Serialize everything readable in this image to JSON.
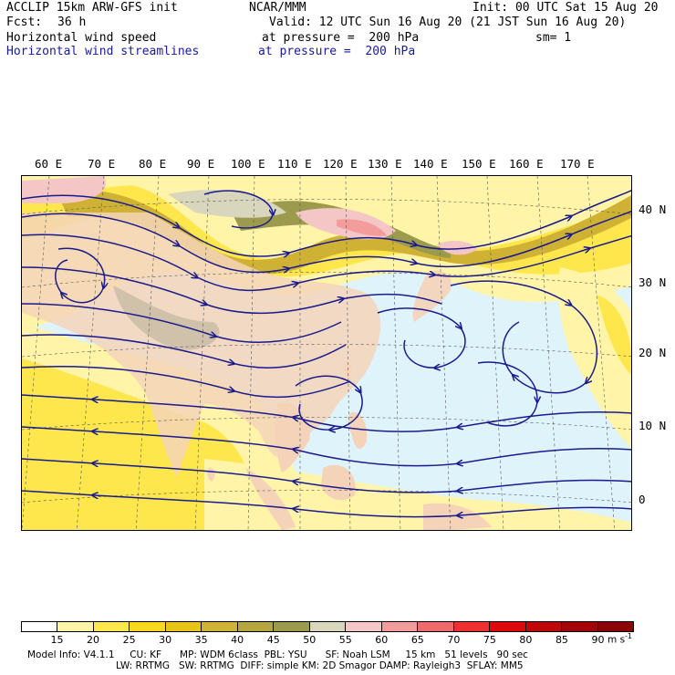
{
  "header": {
    "model": "ACCLIP 15km ARW-GFS init",
    "fcst_label": "Fcst:",
    "fcst_value": "36 h",
    "org": "NCAR/MMM",
    "init": "Init: 00 UTC Sat 15 Aug 20",
    "valid": "Valid: 12 UTC Sun 16 Aug 20 (21 JST Sun 16 Aug 20)",
    "field1": "Horizontal wind speed",
    "field1_level": "at pressure =  200 hPa",
    "sm": "sm= 1",
    "field2": "Horizontal wind streamlines",
    "field2_level": "at pressure =  200 hPa"
  },
  "map": {
    "lon_labels": [
      "60 E",
      "70 E",
      "80 E",
      "90 E",
      "100 E",
      "110 E",
      "120 E",
      "130 E",
      "140 E",
      "150 E",
      "160 E",
      "170 E"
    ],
    "lat_labels": [
      "40 N",
      "30 N",
      "20 N",
      "10 N",
      "0"
    ],
    "stream_color": "#1a1a8c",
    "land_color": "#f5d3b8",
    "ocean_color": "#dff3fb"
  },
  "colorbar": {
    "labels": [
      "15",
      "20",
      "25",
      "30",
      "35",
      "40",
      "45",
      "50",
      "55",
      "60",
      "65",
      "70",
      "75",
      "80",
      "85",
      "90"
    ],
    "units": "m s",
    "units_exp": "-1",
    "colors": [
      "#ffffff",
      "#fff4a8",
      "#fde74c",
      "#f7d81f",
      "#e8c419",
      "#cfb233",
      "#b5a640",
      "#9c9a4d",
      "#d8d6bd",
      "#f4c6c6",
      "#f29c9c",
      "#ef6b6b",
      "#ee3030",
      "#dc0a0a",
      "#c00707",
      "#a30606",
      "#8a0505"
    ]
  },
  "footer": {
    "line1": "Model Info: V4.1.1     CU: KF      MP: WDM 6class  PBL: YSU      SF: Noah LSM     15 km   51 levels   90 sec",
    "line2": "LW: RRTMG   SW: RRTMG  DIFF: simple KM: 2D Smagor DAMP: Rayleigh3  SFLAY: MM5"
  }
}
